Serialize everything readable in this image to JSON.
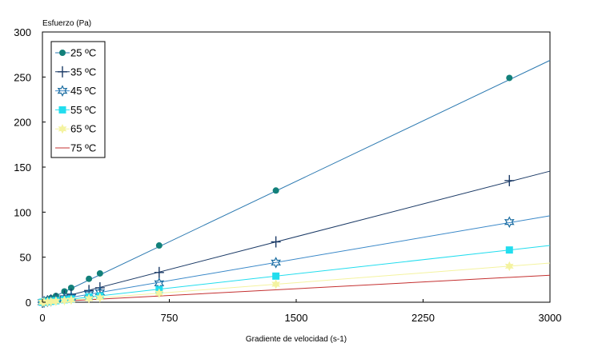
{
  "chart_data": {
    "type": "line",
    "title": "",
    "ylabel": "Esfuerzo (Pa)",
    "xlabel": "Gradiente de velocidad (s-1)",
    "xlim": [
      0,
      3000
    ],
    "ylim": [
      0,
      300
    ],
    "xticks": [
      0,
      750,
      1500,
      2250,
      3000
    ],
    "yticks": [
      0,
      50,
      100,
      150,
      200,
      250,
      300
    ],
    "xtick_labels": [
      "0",
      "750",
      "1500",
      "2250",
      "3000"
    ],
    "ytick_labels": [
      "0",
      "50",
      "100",
      "150",
      "200",
      "250",
      "300"
    ],
    "grid": false,
    "legend_position": "top-left",
    "series": [
      {
        "name": "25 ºC",
        "color": "#12807a",
        "line_color": "#2a78b0",
        "marker": "filled-circle",
        "x": [
          0,
          10,
          30,
          50,
          80,
          130,
          170,
          275,
          340,
          690,
          1380,
          2760
        ],
        "y": [
          0,
          1,
          3,
          4.5,
          7,
          12,
          16,
          26,
          32,
          63,
          124,
          249
        ],
        "fit_slope": 0.0895
      },
      {
        "name": "35 ºC",
        "color": "#1b3a66",
        "line_color": "#1b3a66",
        "marker": "plus",
        "x": [
          0,
          10,
          30,
          50,
          80,
          130,
          170,
          275,
          340,
          690,
          1380,
          2760
        ],
        "y": [
          0,
          0.5,
          1.5,
          2.5,
          4,
          7,
          9,
          13,
          16,
          33,
          67,
          135
        ],
        "fit_slope": 0.0485
      },
      {
        "name": "45 ºC",
        "color": "#1a6ca0",
        "line_color": "#3a88c8",
        "marker": "open-star",
        "x": [
          0,
          10,
          30,
          50,
          80,
          130,
          170,
          275,
          340,
          690,
          1380,
          2760
        ],
        "y": [
          0,
          0.3,
          1,
          1.5,
          2.5,
          4,
          5.5,
          9,
          11,
          21,
          44,
          89
        ],
        "fit_slope": 0.032
      },
      {
        "name": "55 ºC",
        "color": "#22ddee",
        "line_color": "#22ddee",
        "marker": "filled-square",
        "x": [
          0,
          10,
          30,
          50,
          80,
          130,
          170,
          275,
          340,
          690,
          1380,
          2760
        ],
        "y": [
          0,
          0.2,
          0.6,
          1,
          1.7,
          2.8,
          3.6,
          6,
          7,
          14,
          29,
          58
        ],
        "fit_slope": 0.021
      },
      {
        "name": "65 ºC",
        "color": "#f4f3a0",
        "line_color": "#f4f3a0",
        "marker": "star",
        "x": [
          0,
          10,
          30,
          50,
          80,
          130,
          170,
          275,
          340,
          690,
          1380,
          2760
        ],
        "y": [
          0,
          0.15,
          0.45,
          0.7,
          1.2,
          1.9,
          2.5,
          4,
          5,
          10,
          20,
          40
        ],
        "fit_slope": 0.0145
      },
      {
        "name": "75 ºC",
        "color": "#c43030",
        "line_color": "#c43030",
        "marker": "none",
        "x": [
          0,
          3000
        ],
        "y": [
          0,
          30
        ],
        "fit_slope": 0.01
      }
    ]
  }
}
